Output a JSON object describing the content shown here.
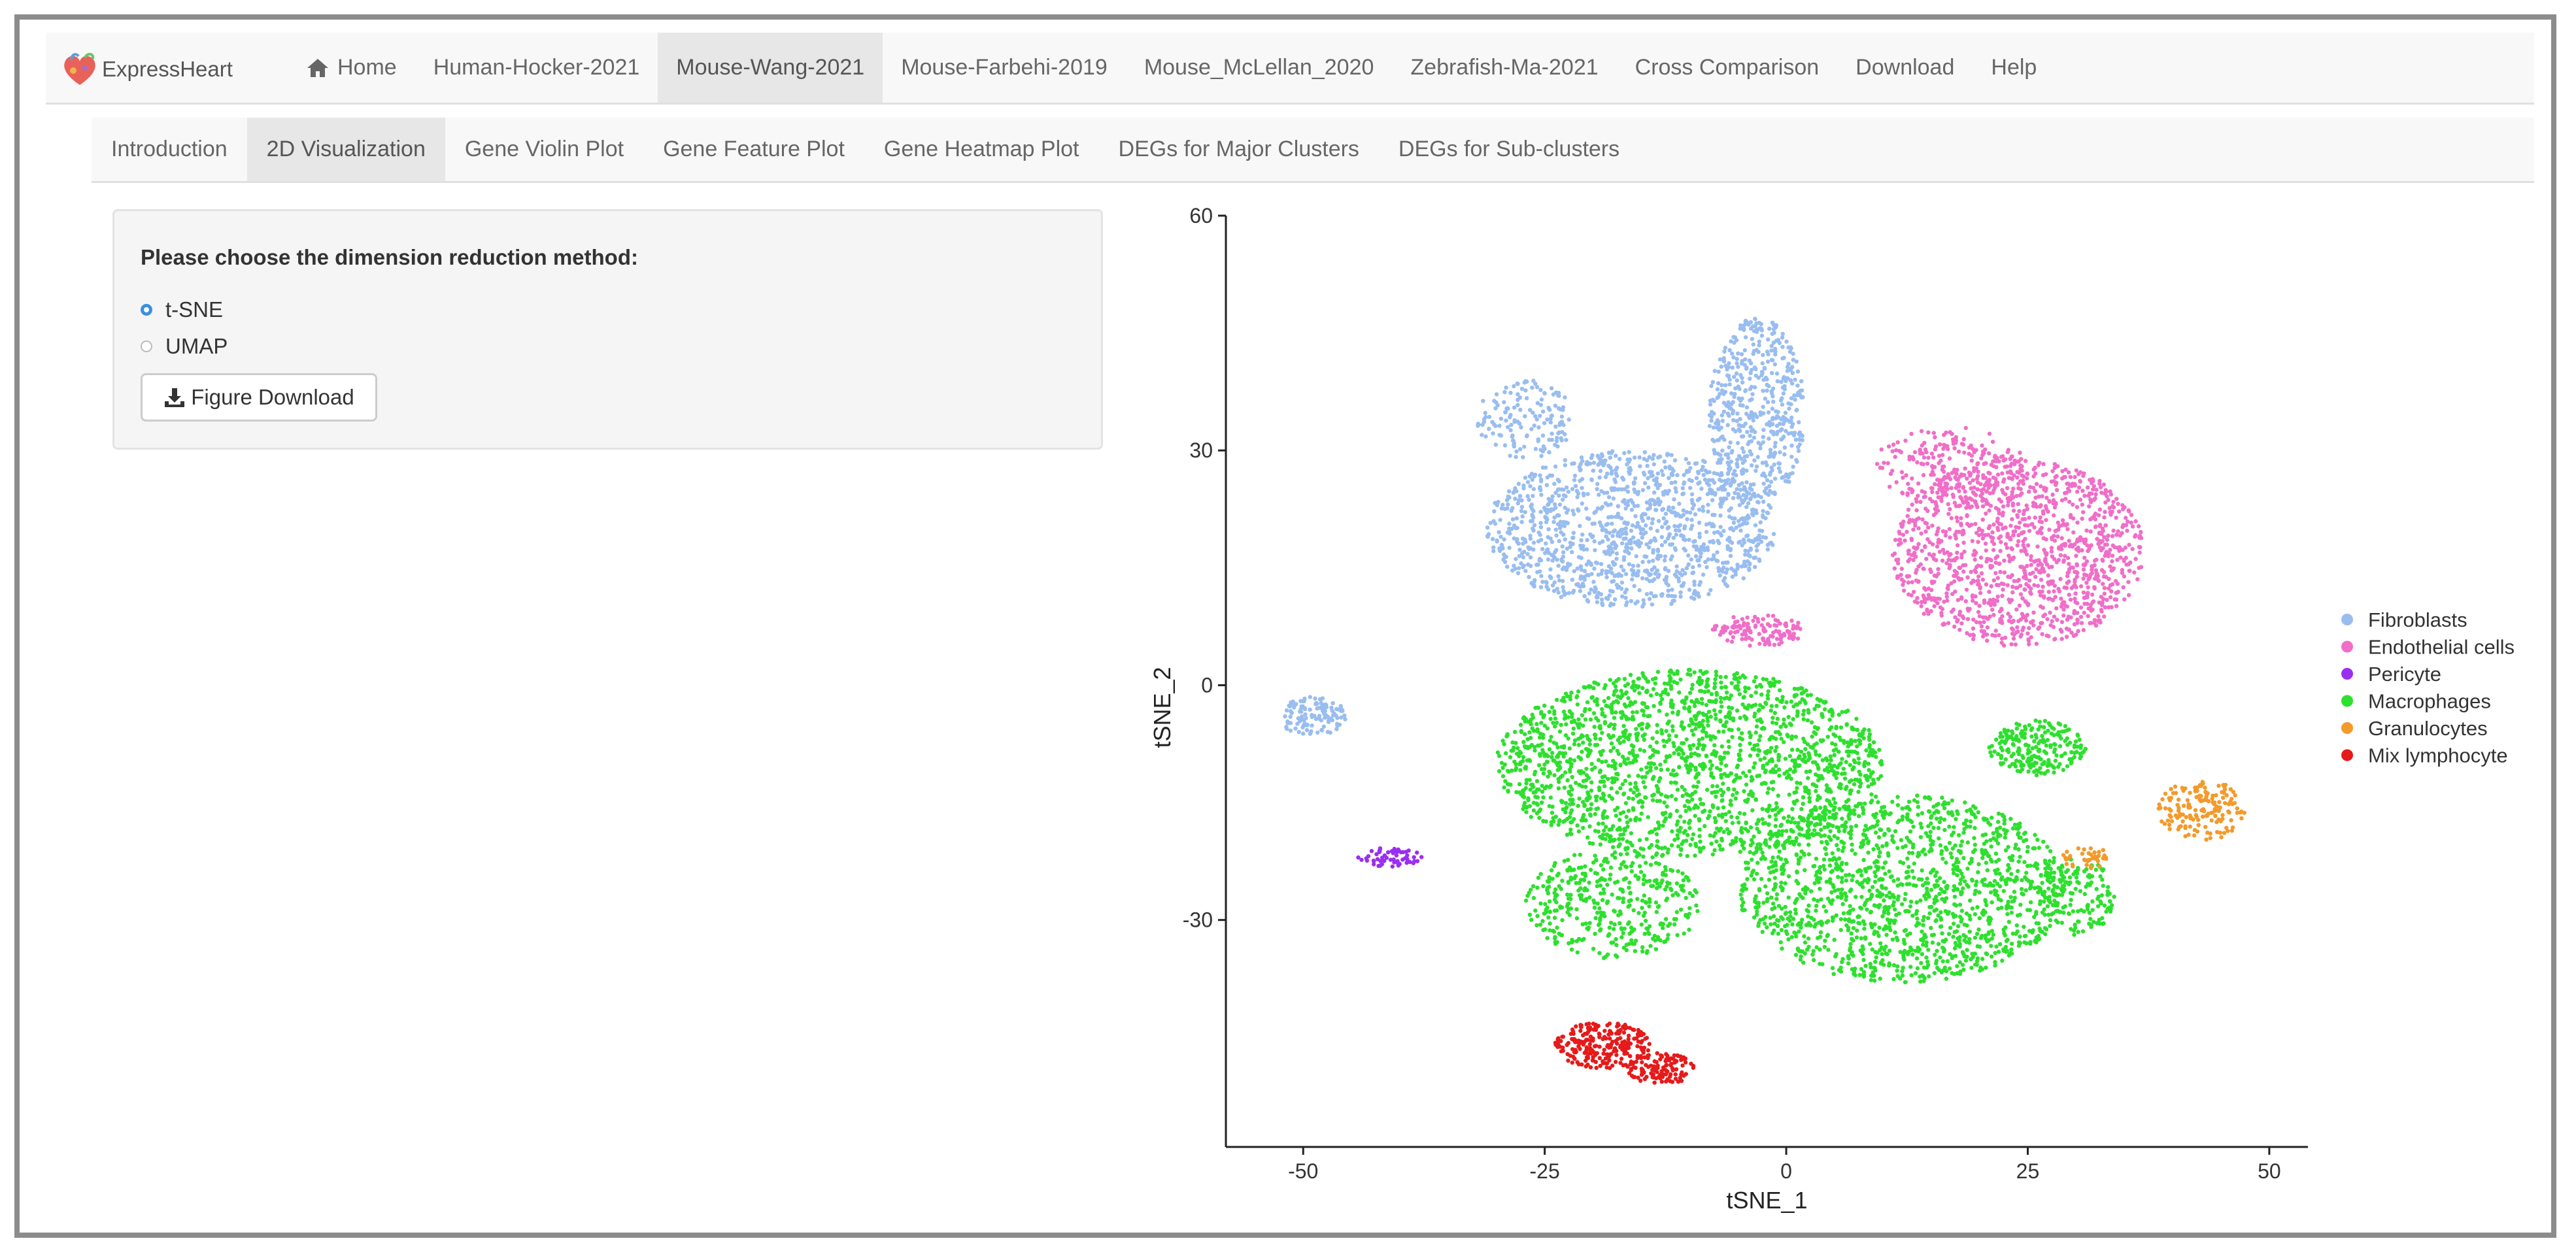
{
  "app": {
    "brand": "ExpressHeart"
  },
  "navbar": {
    "items": [
      {
        "label": "Home",
        "icon": "home-icon"
      },
      {
        "label": "Human-Hocker-2021"
      },
      {
        "label": "Mouse-Wang-2021",
        "active": true
      },
      {
        "label": "Mouse-Farbehi-2019"
      },
      {
        "label": "Mouse_McLellan_2020"
      },
      {
        "label": "Zebrafish-Ma-2021"
      },
      {
        "label": "Cross Comparison"
      },
      {
        "label": "Download"
      },
      {
        "label": "Help"
      }
    ]
  },
  "subnav": {
    "items": [
      {
        "label": "Introduction"
      },
      {
        "label": "2D Visualization",
        "active": true
      },
      {
        "label": "Gene Violin Plot"
      },
      {
        "label": "Gene Feature Plot"
      },
      {
        "label": "Gene Heatmap Plot"
      },
      {
        "label": "DEGs for Major Clusters"
      },
      {
        "label": "DEGs for Sub-clusters"
      }
    ]
  },
  "panel": {
    "label": "Please choose the dimension reduction method:",
    "options": [
      {
        "label": "t-SNE",
        "checked": true
      },
      {
        "label": "UMAP",
        "checked": false
      }
    ],
    "download_button": "Figure Download",
    "download_icon": "download-icon"
  },
  "colors": {
    "accent": "#3b8fe0"
  },
  "chart_data": {
    "type": "scatter",
    "xlabel": "tSNE_1",
    "ylabel": "tSNE_2",
    "xlim": [
      -58,
      54
    ],
    "ylim": [
      -59,
      60
    ],
    "xticks": [
      -50,
      -25,
      0,
      25,
      50
    ],
    "yticks": [
      -30,
      0,
      30,
      60
    ],
    "grid": false,
    "legend_position": "right",
    "series": [
      {
        "name": "Fibroblasts",
        "color": "#99bdef",
        "regions": [
          {
            "cx": -16,
            "cy": 20,
            "rx": 15,
            "ry": 10,
            "n": 1200
          },
          {
            "cx": -3,
            "cy": 35,
            "rx": 5,
            "ry": 12,
            "n": 500
          },
          {
            "cx": -27,
            "cy": 34,
            "rx": 5,
            "ry": 5,
            "n": 150
          },
          {
            "cx": -49,
            "cy": -4,
            "rx": 3.5,
            "ry": 2.5,
            "n": 120
          }
        ]
      },
      {
        "name": "Endothelial cells",
        "color": "#f06ec8",
        "regions": [
          {
            "cx": 24,
            "cy": 17,
            "rx": 13,
            "ry": 12,
            "n": 1300
          },
          {
            "cx": 17,
            "cy": 28,
            "rx": 8,
            "ry": 5,
            "n": 200
          },
          {
            "cx": -3,
            "cy": 7,
            "rx": 5,
            "ry": 2,
            "n": 120
          }
        ]
      },
      {
        "name": "Pericyte",
        "color": "#9b2ef0",
        "regions": [
          {
            "cx": -41,
            "cy": -22,
            "rx": 3.5,
            "ry": 1.2,
            "n": 60
          }
        ]
      },
      {
        "name": "Macrophages",
        "color": "#2ee02e",
        "regions": [
          {
            "cx": -10,
            "cy": -10,
            "rx": 20,
            "ry": 12,
            "n": 1900
          },
          {
            "cx": 12,
            "cy": -26,
            "rx": 17,
            "ry": 12,
            "n": 1500
          },
          {
            "cx": -18,
            "cy": -28,
            "rx": 9,
            "ry": 7,
            "n": 400
          },
          {
            "cx": 26,
            "cy": -8,
            "rx": 5,
            "ry": 3.5,
            "n": 220
          },
          {
            "cx": 30,
            "cy": -27,
            "rx": 4,
            "ry": 5,
            "n": 150
          }
        ]
      },
      {
        "name": "Granulocytes",
        "color": "#f39a2a",
        "regions": [
          {
            "cx": 43,
            "cy": -16,
            "rx": 4.5,
            "ry": 4,
            "n": 160
          },
          {
            "cx": 31,
            "cy": -22,
            "rx": 2.5,
            "ry": 1.5,
            "n": 40
          }
        ]
      },
      {
        "name": "Mix lymphocyte",
        "color": "#e61a1a",
        "regions": [
          {
            "cx": -19,
            "cy": -46,
            "rx": 5,
            "ry": 3,
            "n": 240
          },
          {
            "cx": -13,
            "cy": -49,
            "rx": 3.5,
            "ry": 2,
            "n": 120
          }
        ]
      }
    ]
  }
}
